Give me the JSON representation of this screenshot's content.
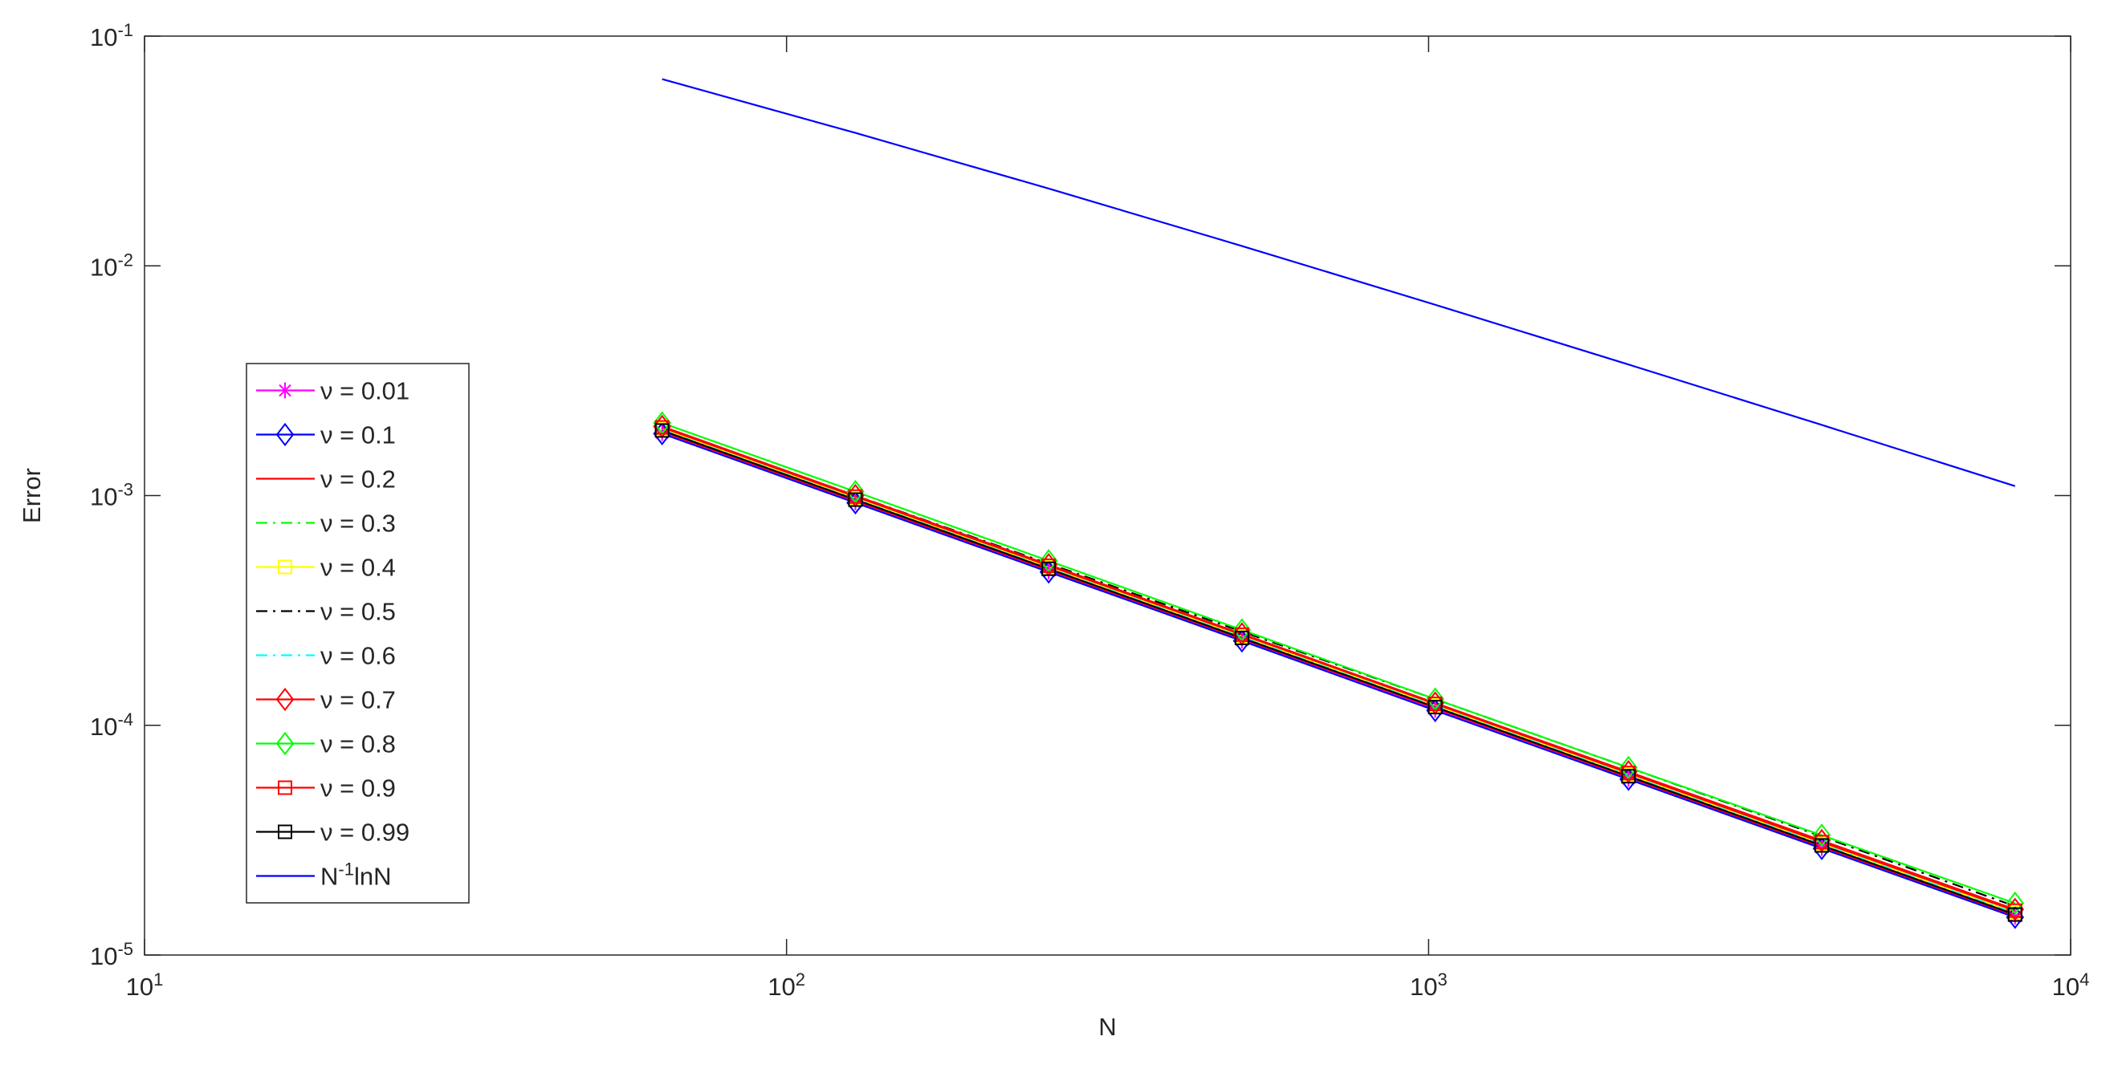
{
  "chart_data": {
    "type": "line",
    "x_label": "N",
    "y_label": "Error",
    "xscale": "log",
    "yscale": "log",
    "grid": false,
    "legend": "west",
    "xlim": [
      10,
      10000
    ],
    "ylim": [
      1e-05,
      0.1
    ],
    "xticks": [
      {
        "value": 10,
        "label": "10^{1}"
      },
      {
        "value": 100,
        "label": "10^{2}"
      },
      {
        "value": 1000,
        "label": "10^{3}"
      },
      {
        "value": 10000,
        "label": "10^{4}"
      }
    ],
    "yticks": [
      {
        "value": 1e-05,
        "label": "10^{-5}"
      },
      {
        "value": 0.0001,
        "label": "10^{-4}"
      },
      {
        "value": 0.001,
        "label": "10^{-3}"
      },
      {
        "value": 0.01,
        "label": "10^{-2}"
      },
      {
        "value": 0.1,
        "label": "10^{-1}"
      }
    ],
    "x": [
      64,
      128,
      256,
      512,
      1024,
      2048,
      4096,
      8192
    ],
    "series": [
      {
        "name": "ν = 0.01",
        "color": "#ff00ff",
        "marker": "star",
        "dash": "solid",
        "values": [
          0.00187,
          0.000935,
          0.000468,
          0.000234,
          0.000117,
          5.85e-05,
          2.93e-05,
          1.47e-05
        ]
      },
      {
        "name": "ν = 0.1",
        "color": "#0000ff",
        "marker": "diamond",
        "dash": "solid",
        "values": [
          0.00186,
          0.00093,
          0.000465,
          0.000233,
          0.000116,
          5.82e-05,
          2.91e-05,
          1.46e-05
        ]
      },
      {
        "name": "ν = 0.2",
        "color": "#ff0000",
        "marker": "none",
        "dash": "solid",
        "values": [
          0.0019,
          0.00095,
          0.000475,
          0.000238,
          0.000119,
          5.94e-05,
          2.97e-05,
          1.49e-05
        ]
      },
      {
        "name": "ν = 0.3",
        "color": "#00ff00",
        "marker": "none",
        "dash": "dashdot",
        "values": [
          0.002,
          0.001,
          0.0005,
          0.00025,
          0.000125,
          6.25e-05,
          3.13e-05,
          1.57e-05
        ]
      },
      {
        "name": "ν = 0.4",
        "color": "#ffff00",
        "marker": "square",
        "dash": "solid",
        "values": [
          0.00195,
          0.000975,
          0.000488,
          0.000244,
          0.000122,
          6.1e-05,
          3.05e-05,
          1.53e-05
        ]
      },
      {
        "name": "ν = 0.5",
        "color": "#000000",
        "marker": "none",
        "dash": "dashdot",
        "values": [
          0.00199,
          0.001,
          0.000505,
          0.000256,
          0.00013,
          6.55e-05,
          3.28e-05,
          1.63e-05
        ]
      },
      {
        "name": "ν = 0.6",
        "color": "#00ffff",
        "marker": "none",
        "dash": "dashdot",
        "values": [
          0.00193,
          0.000965,
          0.000483,
          0.000242,
          0.000121,
          6.05e-05,
          3.03e-05,
          1.52e-05
        ]
      },
      {
        "name": "ν = 0.7",
        "color": "#ff0000",
        "marker": "diamond",
        "dash": "solid",
        "values": [
          0.002,
          0.001,
          0.0005,
          0.00025,
          0.000125,
          6.28e-05,
          3.15e-05,
          1.58e-05
        ]
      },
      {
        "name": "ν = 0.8",
        "color": "#00ff00",
        "marker": "diamond",
        "dash": "solid",
        "values": [
          0.00207,
          0.00104,
          0.00052,
          0.00026,
          0.00013,
          6.55e-05,
          3.32e-05,
          1.68e-05
        ]
      },
      {
        "name": "ν = 0.9",
        "color": "#ff0000",
        "marker": "square",
        "dash": "solid",
        "values": [
          0.00198,
          0.00099,
          0.000495,
          0.000248,
          0.000124,
          6.2e-05,
          3.1e-05,
          1.56e-05
        ]
      },
      {
        "name": "ν = 0.99",
        "color": "#000000",
        "marker": "square",
        "dash": "solid",
        "values": [
          0.00192,
          0.00096,
          0.00048,
          0.00024,
          0.00012,
          6e-05,
          3e-05,
          1.5e-05
        ]
      },
      {
        "name": "N^{-1}lnN",
        "color": "#0000ff",
        "marker": "none",
        "dash": "solid",
        "values": [
          0.065,
          0.0379,
          0.0217,
          0.0122,
          0.00677,
          0.00372,
          0.00203,
          0.0011
        ]
      }
    ]
  }
}
